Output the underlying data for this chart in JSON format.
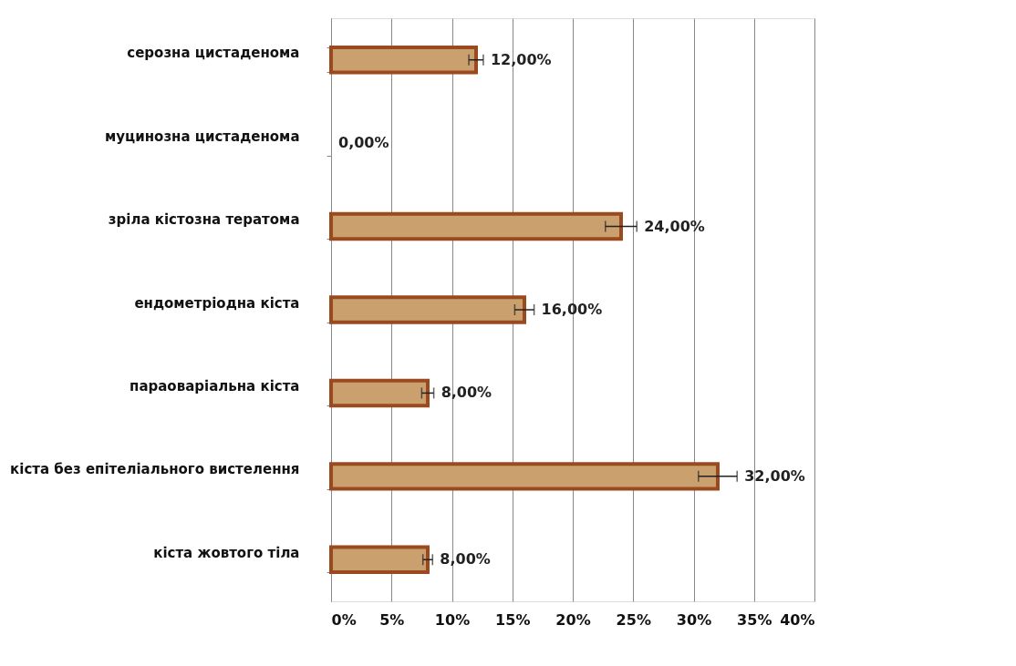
{
  "chart_data": {
    "type": "bar",
    "orientation": "horizontal",
    "categories": [
      "серозна цистаденома",
      "муцинозна цистаденома",
      "зріла кістозна тератома",
      "ендометріодна кіста",
      "параоваріальна  кіста",
      "кіста без епітеліального  вистелення",
      "кіста жовтого тіла"
    ],
    "values": [
      12,
      0,
      24,
      16,
      8,
      32,
      8
    ],
    "errors": [
      0.6,
      null,
      1.3,
      0.8,
      0.5,
      1.6,
      0.4
    ],
    "value_labels": [
      "12,00%",
      "0,00%",
      "24,00%",
      "16,00%",
      "8,00%",
      "32,00%",
      "8,00%"
    ],
    "color": "#c9a06e",
    "xlim": [
      0,
      40
    ],
    "xticks": [
      {
        "value": 0,
        "label": "0%"
      },
      {
        "value": 5,
        "label": "5%"
      },
      {
        "value": 10,
        "label": "10%"
      },
      {
        "value": 15,
        "label": "15%"
      },
      {
        "value": 20,
        "label": "20%"
      },
      {
        "value": 25,
        "label": "25%"
      },
      {
        "value": 30,
        "label": "30%"
      },
      {
        "value": 35,
        "label": "35%"
      },
      {
        "value": 40,
        "label": "40%"
      }
    ],
    "grid": "x"
  }
}
